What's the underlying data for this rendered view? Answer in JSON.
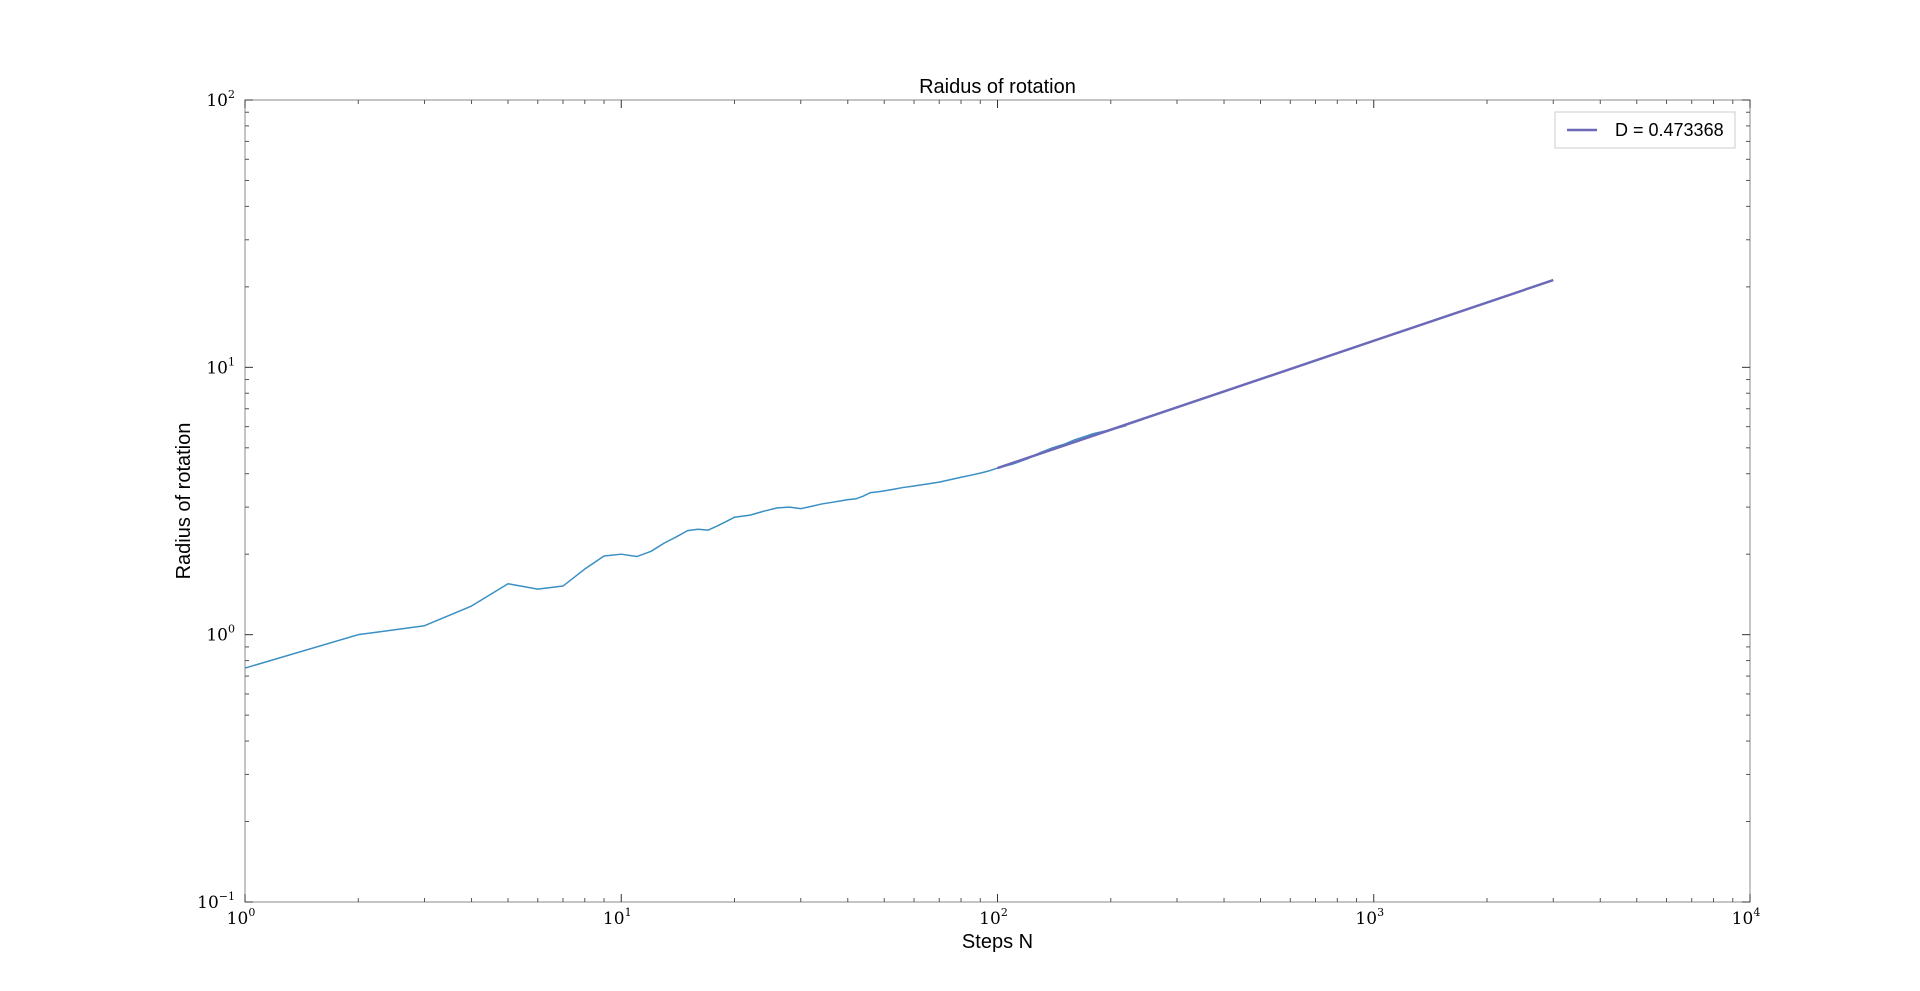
{
  "chart_data": {
    "type": "line",
    "title": "Raidus of rotation",
    "xlabel": "Steps N",
    "ylabel": "Radius of rotation",
    "xscale": "log",
    "yscale": "log",
    "xlim": [
      1,
      10000
    ],
    "ylim": [
      0.1,
      100
    ],
    "grid": false,
    "legend_position": "top-right",
    "x_ticks": [
      {
        "value": 1,
        "base": "10",
        "exp": "0"
      },
      {
        "value": 10,
        "base": "10",
        "exp": "1"
      },
      {
        "value": 100,
        "base": "10",
        "exp": "2"
      },
      {
        "value": 1000,
        "base": "10",
        "exp": "3"
      },
      {
        "value": 10000,
        "base": "10",
        "exp": "4"
      }
    ],
    "y_ticks": [
      {
        "value": 0.1,
        "base": "10",
        "exp": "−1"
      },
      {
        "value": 1,
        "base": "10",
        "exp": "0"
      },
      {
        "value": 10,
        "base": "10",
        "exp": "1"
      },
      {
        "value": 100,
        "base": "10",
        "exp": "2"
      }
    ],
    "series": [
      {
        "color": "#3a8fc4",
        "x": [
          1,
          2,
          3,
          4,
          5,
          6,
          7,
          8,
          9,
          10,
          11,
          12,
          13,
          14,
          15,
          16,
          17,
          18,
          19,
          20,
          22,
          24,
          26,
          28,
          30,
          32,
          34,
          36,
          38,
          40,
          42,
          44,
          46,
          48,
          50,
          53,
          56,
          60,
          65,
          70,
          75,
          80,
          85,
          90,
          95,
          100,
          110,
          120,
          130,
          140,
          150,
          160,
          170,
          180,
          190,
          200,
          210,
          220
        ],
        "values": [
          0.75,
          1.0,
          1.08,
          1.28,
          1.55,
          1.48,
          1.52,
          1.76,
          1.97,
          2.0,
          1.96,
          2.05,
          2.2,
          2.32,
          2.45,
          2.48,
          2.46,
          2.55,
          2.65,
          2.75,
          2.8,
          2.9,
          2.98,
          3.0,
          2.96,
          3.02,
          3.08,
          3.12,
          3.16,
          3.2,
          3.22,
          3.3,
          3.4,
          3.42,
          3.45,
          3.5,
          3.55,
          3.6,
          3.66,
          3.72,
          3.8,
          3.88,
          3.95,
          4.02,
          4.1,
          4.2,
          4.35,
          4.55,
          4.8,
          5.0,
          5.15,
          5.35,
          5.5,
          5.65,
          5.75,
          5.85,
          5.95,
          6.05
        ]
      },
      {
        "name": "D = 0.473368",
        "color": "#6c6ab8",
        "x": [
          100,
          3000
        ],
        "values": [
          4.2,
          21.2
        ]
      }
    ]
  }
}
